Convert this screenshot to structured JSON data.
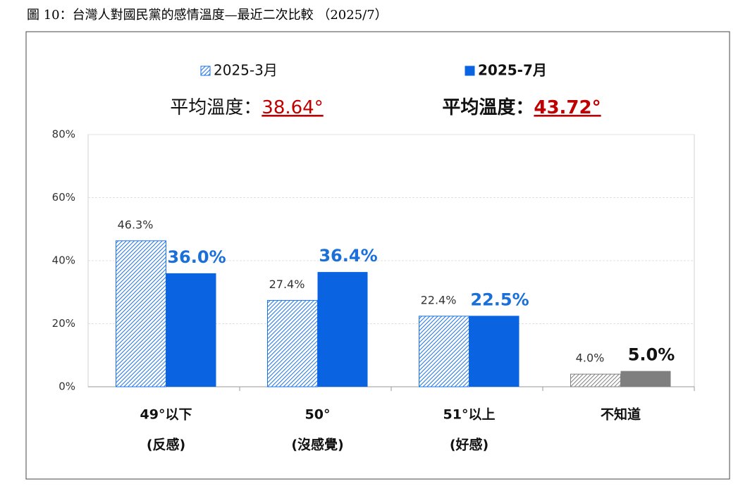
{
  "chart_data": {
    "type": "bar",
    "title": "圖 10：台灣人對國民黨的感情溫度—最近二次比較 （2025/7）",
    "categories": [
      [
        "49°以下",
        "(反感)"
      ],
      [
        "50°",
        "(沒感覺)"
      ],
      [
        "51°以上",
        "(好感)"
      ],
      [
        "不知道"
      ]
    ],
    "series": [
      {
        "name": "2025-3月",
        "color": "#1a73e8",
        "hatched": true,
        "average_label": "平均溫度：",
        "average": "38.64°",
        "values": [
          46.3,
          27.4,
          22.4,
          4.0
        ],
        "value_labels": [
          "46.3%",
          "27.4%",
          "22.4%",
          "4.0%"
        ],
        "colors": [
          "#1a73e8",
          "#1a73e8",
          "#1a73e8",
          "#7f7f7f"
        ],
        "label_colors": [
          "#333333",
          "#333333",
          "#333333",
          "#333333"
        ]
      },
      {
        "name": "2025-7月",
        "color": "#0a63e0",
        "hatched": false,
        "average_label": "平均溫度：",
        "average": "43.72°",
        "values": [
          36.0,
          36.4,
          22.5,
          5.0
        ],
        "value_labels": [
          "36.0%",
          "36.4%",
          "22.5%",
          "5.0%"
        ],
        "colors": [
          "#0a63e0",
          "#0a63e0",
          "#0a63e0",
          "#7f7f7f"
        ],
        "label_colors": [
          "#1a6fd8",
          "#1a6fd8",
          "#1a6fd8",
          "#111111"
        ]
      }
    ],
    "average_color": "#c00000",
    "ylim": [
      0,
      80
    ],
    "yticks": [
      {
        "value": 0,
        "label": "0%"
      },
      {
        "value": 20,
        "label": "20%"
      },
      {
        "value": 40,
        "label": "40%"
      },
      {
        "value": 60,
        "label": "60%"
      },
      {
        "value": 80,
        "label": "80%"
      }
    ],
    "grid": true
  }
}
